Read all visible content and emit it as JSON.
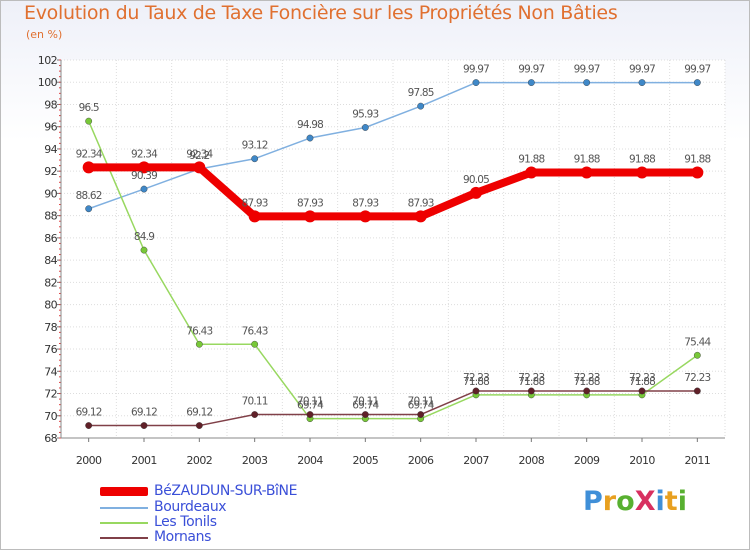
{
  "title": "Evolution du Taux de Taxe Foncière sur les Propriétés Non Bâties",
  "subtitle": "(en %)",
  "logo": {
    "text": "ProXiti",
    "colors": [
      "#3f8fd8",
      "#e8a020",
      "#58b030",
      "#d83060",
      "#3f8fd8",
      "#e8a020",
      "#58b030"
    ]
  },
  "chart_data": {
    "type": "line",
    "title": "Evolution du Taux de Taxe Foncière sur les Propriétés Non Bâties",
    "ylabel": "(en %)",
    "xlabel": "",
    "categories": [
      "2000",
      "2001",
      "2002",
      "2003",
      "2004",
      "2005",
      "2006",
      "2007",
      "2008",
      "2009",
      "2010",
      "2011"
    ],
    "ylim": [
      68,
      102
    ],
    "yticks": [
      68,
      70,
      72,
      74,
      76,
      78,
      80,
      82,
      84,
      86,
      88,
      90,
      92,
      94,
      96,
      98,
      100,
      102
    ],
    "grid": true,
    "series": [
      {
        "name": "BéZAUDUN-SUR-BîNE",
        "color": "#ee0000",
        "markerColor": "#ee0000",
        "strokeWidth": 8,
        "markerR": 6,
        "values": [
          92.34,
          92.34,
          92.34,
          87.93,
          87.93,
          87.93,
          87.93,
          90.05,
          91.88,
          91.88,
          91.88,
          91.88
        ],
        "labels": [
          "92.34",
          "92.34",
          "92.34",
          "87.93",
          "87.93",
          "87.93",
          "87.93",
          "90.05",
          "91.88",
          "91.88",
          "91.88",
          "91.88"
        ]
      },
      {
        "name": "Bourdeaux",
        "color": "#80b0e0",
        "markerColor": "#3f88c8",
        "strokeWidth": 1.5,
        "markerR": 3.2,
        "values": [
          88.62,
          90.39,
          92.2,
          93.12,
          94.98,
          95.93,
          97.85,
          99.97,
          99.97,
          99.97,
          99.97,
          99.97
        ],
        "labels": [
          "88.62",
          "90.39",
          "92.2",
          "93.12",
          "94.98",
          "95.93",
          "97.85",
          "99.97",
          "99.97",
          "99.97",
          "99.97",
          "99.97"
        ]
      },
      {
        "name": "Les Tonils",
        "color": "#98d860",
        "markerColor": "#78c838",
        "strokeWidth": 1.5,
        "markerR": 3.2,
        "values": [
          96.5,
          84.9,
          76.43,
          76.43,
          69.74,
          69.74,
          69.74,
          71.88,
          71.88,
          71.88,
          71.88,
          75.44
        ],
        "labels": [
          "96.5",
          "84.9",
          "76.43",
          "76.43",
          "69.74",
          "69.74",
          "69.74",
          "71.88",
          "71.88",
          "71.88",
          "71.88",
          "75.44"
        ]
      },
      {
        "name": "Mornans",
        "color": "#804048",
        "markerColor": "#602028",
        "strokeWidth": 1.5,
        "markerR": 3.2,
        "values": [
          69.12,
          69.12,
          69.12,
          70.11,
          70.11,
          70.11,
          70.11,
          72.23,
          72.23,
          72.23,
          72.23,
          72.23
        ],
        "labels": [
          "69.12",
          "69.12",
          "69.12",
          "70.11",
          "70.11",
          "70.11",
          "70.11",
          "72.23",
          "72.23",
          "72.23",
          "72.23",
          "72.23"
        ]
      }
    ],
    "legend": {
      "position": "bottom-left"
    }
  }
}
